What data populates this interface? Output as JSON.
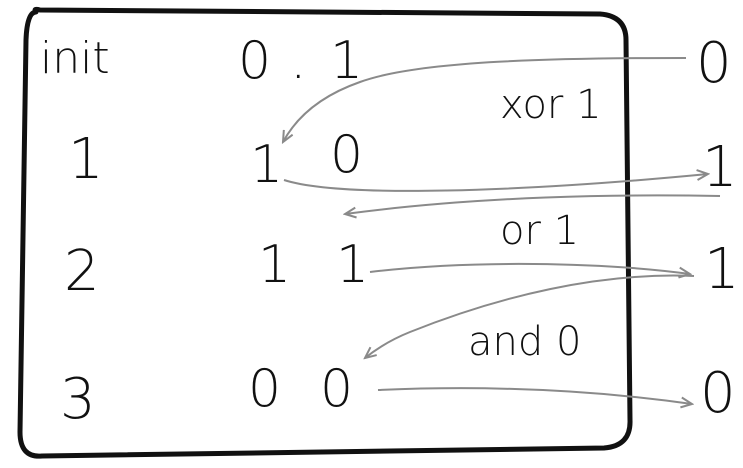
{
  "table": {
    "rows": [
      {
        "step": "init",
        "values": [
          "0",
          ".",
          "1"
        ]
      },
      {
        "step": "1",
        "values": [
          "1",
          "0"
        ]
      },
      {
        "step": "2",
        "values": [
          "1",
          "1"
        ]
      },
      {
        "step": "3",
        "values": [
          "0",
          "0"
        ]
      }
    ]
  },
  "inputs": [
    "0",
    "1",
    "1",
    "0"
  ],
  "operations": [
    "xor 1",
    "or 1",
    "and 0"
  ],
  "colors": {
    "ink": "#111111",
    "arrow": "#8a8a8a"
  }
}
